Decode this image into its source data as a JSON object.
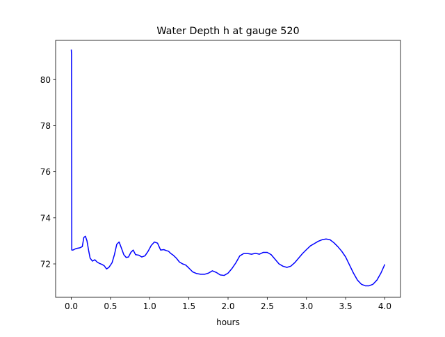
{
  "chart_data": {
    "type": "line",
    "title": "Water Depth h at gauge 520",
    "xlabel": "hours",
    "ylabel": "",
    "xlim": [
      -0.2,
      4.2
    ],
    "ylim": [
      70.55,
      81.7
    ],
    "xticks": [
      0.0,
      0.5,
      1.0,
      1.5,
      2.0,
      2.5,
      3.0,
      3.5,
      4.0
    ],
    "xtick_labels": [
      "0.0",
      "0.5",
      "1.0",
      "1.5",
      "2.0",
      "2.5",
      "3.0",
      "3.5",
      "4.0"
    ],
    "yticks": [
      72,
      74,
      76,
      78,
      80
    ],
    "ytick_labels": [
      "72",
      "74",
      "76",
      "78",
      "80"
    ],
    "grid": false,
    "line_color": "#0000ff",
    "series": [
      {
        "x": [
          0.0,
          0.003,
          0.006,
          0.01,
          0.02,
          0.05,
          0.08,
          0.11,
          0.14,
          0.16,
          0.18,
          0.2,
          0.22,
          0.24,
          0.27,
          0.3,
          0.33,
          0.36,
          0.39,
          0.42,
          0.45,
          0.48,
          0.5,
          0.52,
          0.55,
          0.58,
          0.61,
          0.64,
          0.67,
          0.7,
          0.73,
          0.76,
          0.79,
          0.82,
          0.86,
          0.9,
          0.94,
          0.98,
          1.02,
          1.06,
          1.1,
          1.14,
          1.18,
          1.21,
          1.24,
          1.27,
          1.3,
          1.34,
          1.38,
          1.42,
          1.46,
          1.5,
          1.55,
          1.6,
          1.65,
          1.7,
          1.75,
          1.8,
          1.85,
          1.9,
          1.95,
          2.0,
          2.05,
          2.1,
          2.15,
          2.2,
          2.25,
          2.3,
          2.35,
          2.4,
          2.45,
          2.5,
          2.55,
          2.6,
          2.65,
          2.7,
          2.75,
          2.8,
          2.85,
          2.9,
          2.95,
          3.0,
          3.05,
          3.1,
          3.15,
          3.2,
          3.25,
          3.3,
          3.35,
          3.4,
          3.45,
          3.5,
          3.55,
          3.6,
          3.65,
          3.7,
          3.75,
          3.8,
          3.85,
          3.9,
          3.95,
          4.0
        ],
        "y": [
          81.3,
          81.1,
          72.6,
          72.6,
          72.6,
          72.65,
          72.68,
          72.7,
          72.75,
          73.15,
          73.2,
          73.0,
          72.6,
          72.25,
          72.12,
          72.18,
          72.08,
          72.02,
          71.98,
          71.92,
          71.78,
          71.85,
          71.95,
          72.05,
          72.4,
          72.85,
          72.95,
          72.68,
          72.4,
          72.28,
          72.3,
          72.5,
          72.6,
          72.4,
          72.38,
          72.3,
          72.35,
          72.55,
          72.8,
          72.95,
          72.9,
          72.6,
          72.62,
          72.58,
          72.55,
          72.45,
          72.38,
          72.25,
          72.08,
          72.0,
          71.95,
          71.82,
          71.65,
          71.58,
          71.55,
          71.55,
          71.6,
          71.7,
          71.63,
          71.52,
          71.5,
          71.6,
          71.8,
          72.05,
          72.35,
          72.45,
          72.45,
          72.42,
          72.46,
          72.42,
          72.5,
          72.5,
          72.4,
          72.2,
          72.0,
          71.9,
          71.85,
          71.9,
          72.05,
          72.25,
          72.45,
          72.62,
          72.78,
          72.88,
          72.98,
          73.05,
          73.08,
          73.05,
          72.92,
          72.75,
          72.55,
          72.3,
          71.95,
          71.6,
          71.3,
          71.12,
          71.05,
          71.05,
          71.12,
          71.3,
          71.6,
          71.98
        ]
      }
    ]
  }
}
